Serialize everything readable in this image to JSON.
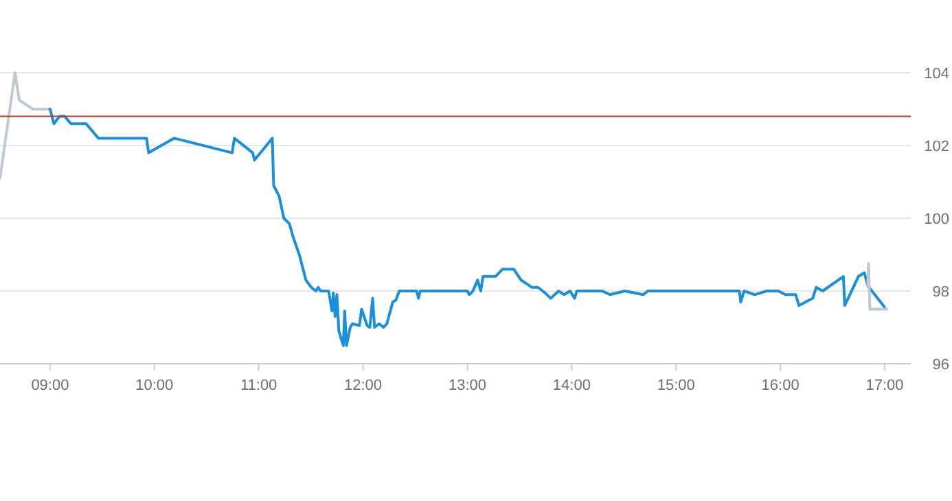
{
  "chart_data": {
    "type": "line",
    "xlim": [
      8.52,
      17.25
    ],
    "ylim": [
      96,
      104
    ],
    "xticks": [
      {
        "value": 9,
        "label": "09:00"
      },
      {
        "value": 10,
        "label": "10:00"
      },
      {
        "value": 11,
        "label": "11:00"
      },
      {
        "value": 12,
        "label": "12:00"
      },
      {
        "value": 13,
        "label": "13:00"
      },
      {
        "value": 14,
        "label": "14:00"
      },
      {
        "value": 15,
        "label": "15:00"
      },
      {
        "value": 16,
        "label": "16:00"
      },
      {
        "value": 17,
        "label": "17:00"
      }
    ],
    "yticks": [
      96,
      98,
      100,
      102,
      104
    ],
    "grid": "y",
    "marker": "none",
    "line_style": "solid",
    "ref_lines": [
      {
        "axis": "y",
        "value": 102.8,
        "color": "#c23531"
      }
    ],
    "series": [
      {
        "color": "#c0c8d2",
        "x": [
          8.52,
          8.664,
          8.704,
          8.835,
          9.0
        ],
        "values": [
          101.1,
          104.0,
          103.25,
          103.0,
          103.0
        ]
      },
      {
        "color": "#1a90dc",
        "x": [
          9.0,
          9.037,
          9.09,
          9.14,
          9.2,
          9.345,
          9.463,
          9.924,
          9.945,
          10.188,
          10.745,
          10.767,
          10.942,
          10.959,
          11.13,
          11.143,
          11.196,
          11.241,
          11.294,
          11.328,
          11.394,
          11.452,
          11.504,
          11.548,
          11.57,
          11.591,
          11.67,
          11.702,
          11.715,
          11.732,
          11.749,
          11.768,
          11.789,
          11.811,
          11.824,
          11.841,
          11.877,
          11.899,
          11.965,
          11.986,
          12.039,
          12.065,
          12.092,
          12.11,
          12.153,
          12.197,
          12.228,
          12.285,
          12.315,
          12.347,
          12.513,
          12.531,
          12.548,
          13.0,
          13.018,
          13.053,
          13.098,
          13.128,
          13.15,
          13.269,
          13.338,
          13.444,
          13.514,
          13.619,
          13.677,
          13.743,
          13.799,
          13.874,
          13.927,
          13.984,
          14.027,
          14.049,
          14.29,
          14.369,
          14.51,
          14.685,
          14.73,
          15.607,
          15.62,
          15.652,
          15.752,
          15.87,
          15.981,
          16.047,
          16.147,
          16.178,
          16.31,
          16.344,
          16.406,
          16.604,
          16.617,
          16.748,
          16.805,
          16.837,
          17.0
        ],
        "values": [
          103.0,
          102.6,
          102.8,
          102.8,
          102.6,
          102.6,
          102.2,
          102.2,
          101.8,
          102.2,
          101.8,
          102.2,
          101.8,
          101.6,
          102.2,
          100.9,
          100.6,
          100.0,
          99.85,
          99.5,
          98.95,
          98.3,
          98.1,
          98.0,
          98.1,
          98.0,
          98.0,
          97.45,
          97.95,
          97.3,
          97.9,
          96.9,
          96.7,
          96.5,
          97.45,
          96.5,
          97.0,
          97.1,
          97.05,
          97.5,
          97.05,
          97.0,
          97.8,
          97.0,
          97.1,
          97.0,
          97.1,
          97.7,
          97.75,
          98.0,
          98.0,
          97.8,
          98.0,
          98.0,
          97.9,
          98.0,
          98.3,
          98.0,
          98.4,
          98.4,
          98.6,
          98.6,
          98.3,
          98.1,
          98.1,
          97.95,
          97.8,
          98.0,
          97.9,
          98.0,
          97.8,
          98.0,
          98.0,
          97.9,
          98.0,
          97.9,
          98.0,
          98.0,
          97.7,
          98.0,
          97.9,
          98.0,
          98.0,
          97.9,
          97.9,
          97.6,
          97.8,
          98.1,
          98.0,
          98.4,
          97.6,
          98.4,
          98.5,
          98.15,
          97.55
        ]
      },
      {
        "color": "#c0c8d2",
        "x": [
          16.837,
          16.845,
          16.858,
          17.021
        ],
        "values": [
          98.15,
          98.75,
          97.5,
          97.5
        ]
      }
    ]
  }
}
